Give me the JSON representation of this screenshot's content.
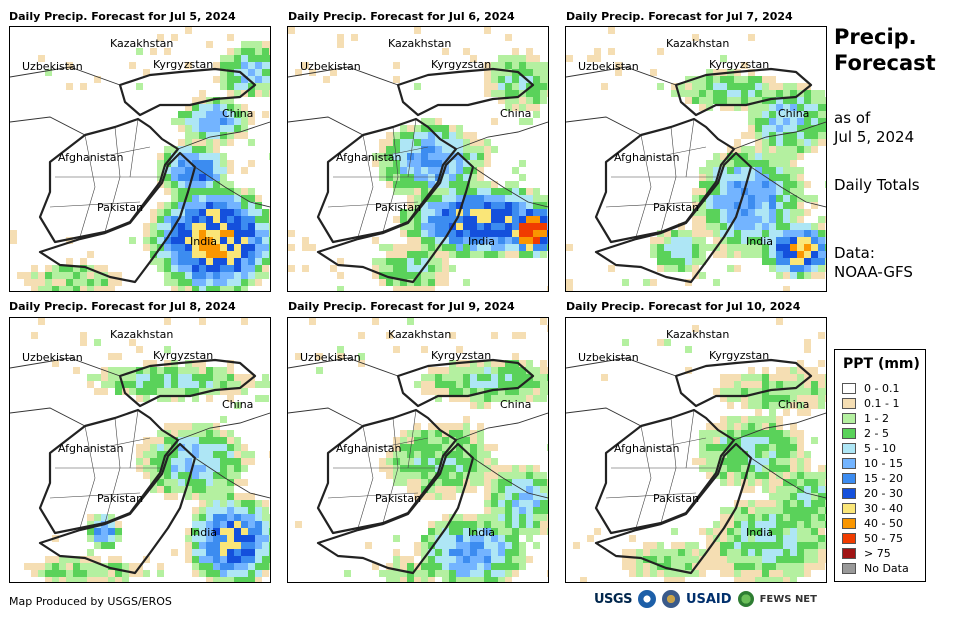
{
  "panels": [
    {
      "title": "Daily Precip. Forecast for Jul 5, 2024"
    },
    {
      "title": "Daily Precip. Forecast for Jul 6, 2024"
    },
    {
      "title": "Daily Precip. Forecast for Jul 7, 2024"
    },
    {
      "title": "Daily Precip. Forecast for Jul 8, 2024"
    },
    {
      "title": "Daily Precip. Forecast for Jul 9, 2024"
    },
    {
      "title": "Daily Precip. Forecast for Jul 10, 2024"
    }
  ],
  "country_labels": {
    "kazakhstan": "Kazakhstan",
    "uzbekistan": "Uzbekistan",
    "kyrgyzstan": "Kyrgyzstan",
    "china": "China",
    "afghanistan": "Afghanistan",
    "pakistan": "Pakistan",
    "india": "India"
  },
  "sidebar": {
    "title_line1": "Precip.",
    "title_line2": "Forecast",
    "asof_line1": "as of",
    "asof_line2": "Jul 5, 2024",
    "totals": "Daily Totals",
    "data_line1": "Data:",
    "data_line2": "NOAA-GFS"
  },
  "legend": {
    "title": "PPT (mm)",
    "items": [
      {
        "label": "0 - 0.1",
        "color": "#ffffff"
      },
      {
        "label": "0.1 - 1",
        "color": "#f5deb3"
      },
      {
        "label": "1 - 2",
        "color": "#b4f0a0"
      },
      {
        "label": "2 - 5",
        "color": "#5ad25a"
      },
      {
        "label": "5 - 10",
        "color": "#aee6f5"
      },
      {
        "label": "10 - 15",
        "color": "#73b4ff"
      },
      {
        "label": "15 - 20",
        "color": "#3c8cf0"
      },
      {
        "label": "20 - 30",
        "color": "#1450dc"
      },
      {
        "label": "30 - 40",
        "color": "#fae678"
      },
      {
        "label": "40 - 50",
        "color": "#fa9600"
      },
      {
        "label": "50 - 75",
        "color": "#f03c00"
      },
      {
        "label": "> 75",
        "color": "#a01414"
      },
      {
        "label": "No Data",
        "color": "#999999"
      }
    ]
  },
  "footer": {
    "credit": "Map Produced by USGS/EROS",
    "logos": [
      "USGS",
      "NOAA",
      "DOI",
      "USAID",
      "FEWS NET"
    ]
  }
}
